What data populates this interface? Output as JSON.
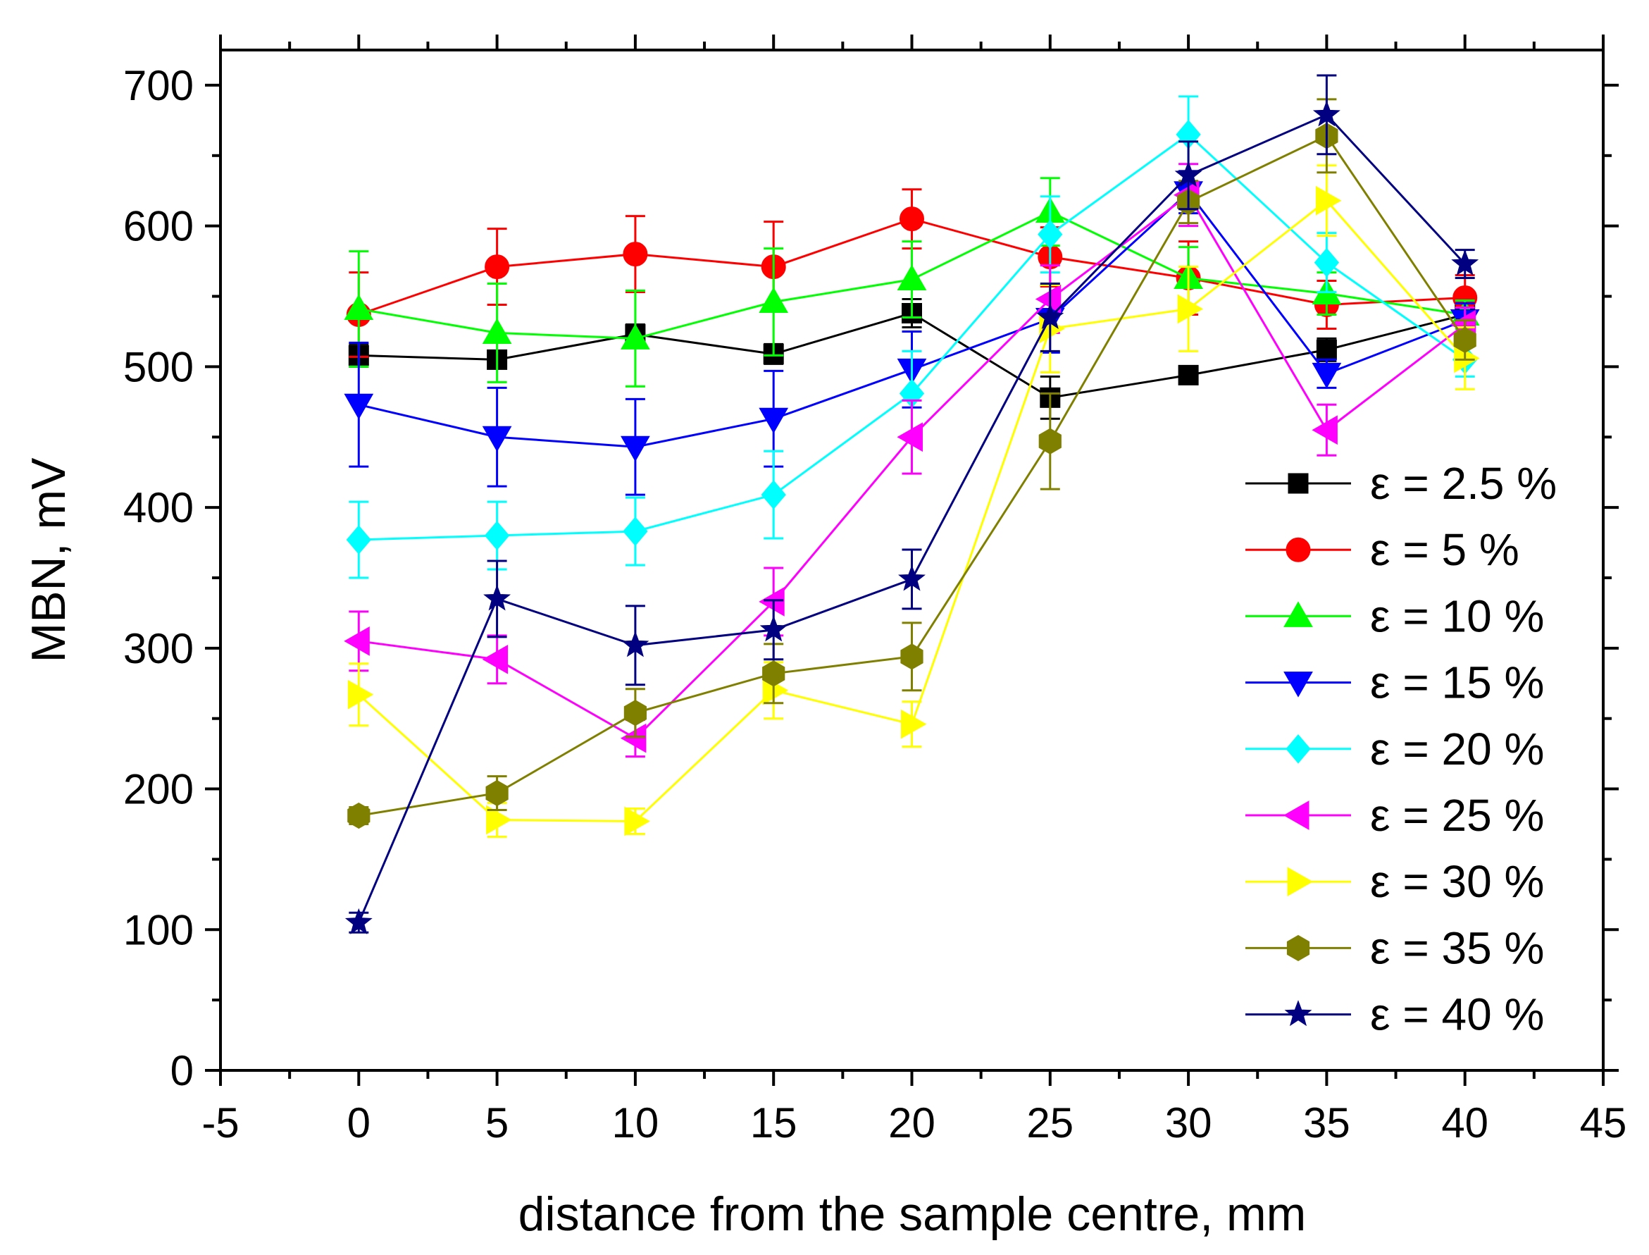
{
  "chart_data": {
    "type": "line",
    "title": "",
    "xlabel": "distance from the sample centre, mm",
    "ylabel": "MBN, mV",
    "xlim": [
      -5,
      45
    ],
    "ylim": [
      0,
      725
    ],
    "xticks": [
      -5,
      0,
      5,
      10,
      15,
      20,
      25,
      30,
      35,
      40,
      45
    ],
    "xtick_labels": [
      "-5",
      "0",
      "5",
      "10",
      "15",
      "20",
      "25",
      "30",
      "35",
      "40",
      "45"
    ],
    "yticks": [
      0,
      100,
      200,
      300,
      400,
      500,
      600,
      700
    ],
    "ytick_labels": [
      "0",
      "100",
      "200",
      "300",
      "400",
      "500",
      "600",
      "700"
    ],
    "grid": false,
    "legend_position": "right",
    "x": [
      0,
      5,
      10,
      15,
      20,
      25,
      30,
      35,
      40
    ],
    "series": [
      {
        "name": "ε = 2.5 %",
        "color": "#000000",
        "marker": "square",
        "values": [
          508,
          505,
          523,
          509,
          538,
          478,
          494,
          512,
          537
        ],
        "errors": [
          8,
          6,
          7,
          7,
          10,
          15,
          5,
          8,
          8
        ]
      },
      {
        "name": "ε = 5 %",
        "color": "#ff0000",
        "marker": "circle",
        "values": [
          537,
          571,
          580,
          571,
          605,
          578,
          563,
          544,
          549
        ],
        "errors": [
          30,
          27,
          27,
          32,
          21,
          21,
          26,
          17,
          16
        ]
      },
      {
        "name": "ε = 10 %",
        "color": "#00ff00",
        "marker": "triangle-up",
        "values": [
          541,
          524,
          520,
          546,
          562,
          610,
          563,
          552,
          537
        ],
        "errors": [
          41,
          35,
          34,
          38,
          27,
          24,
          22,
          15,
          10
        ]
      },
      {
        "name": "ε = 15 %",
        "color": "#0000ff",
        "marker": "triangle-down",
        "values": [
          473,
          450,
          443,
          463,
          498,
          534,
          624,
          495,
          533
        ],
        "errors": [
          44,
          35,
          34,
          34,
          27,
          24,
          15,
          10,
          12
        ]
      },
      {
        "name": "ε = 20 %",
        "color": "#00ffff",
        "marker": "diamond",
        "values": [
          377,
          380,
          383,
          409,
          481,
          594,
          665,
          574,
          505
        ],
        "errors": [
          27,
          24,
          24,
          31,
          30,
          27,
          27,
          21,
          12
        ]
      },
      {
        "name": "ε = 25 %",
        "color": "#ff00ff",
        "marker": "triangle-left",
        "values": [
          305,
          292,
          236,
          333,
          450,
          548,
          622,
          455,
          530
        ],
        "errors": [
          21,
          17,
          13,
          24,
          26,
          24,
          22,
          18,
          12
        ]
      },
      {
        "name": "ε = 30 %",
        "color": "#ffff00",
        "marker": "triangle-right",
        "values": [
          267,
          178,
          177,
          270,
          246,
          527,
          541,
          618,
          506
        ],
        "errors": [
          22,
          12,
          9,
          20,
          16,
          31,
          30,
          25,
          22
        ]
      },
      {
        "name": "ε = 35 %",
        "color": "#808000",
        "marker": "hexagon",
        "values": [
          181,
          197,
          254,
          282,
          294,
          447,
          617,
          664,
          519
        ],
        "errors": [
          6,
          12,
          17,
          21,
          24,
          34,
          15,
          26,
          14
        ]
      },
      {
        "name": "ε = 40 %",
        "color": "#000080",
        "marker": "star",
        "values": [
          105,
          335,
          302,
          313,
          349,
          535,
          636,
          679,
          573
        ],
        "errors": [
          7,
          27,
          28,
          21,
          21,
          24,
          24,
          28,
          10
        ]
      }
    ]
  }
}
